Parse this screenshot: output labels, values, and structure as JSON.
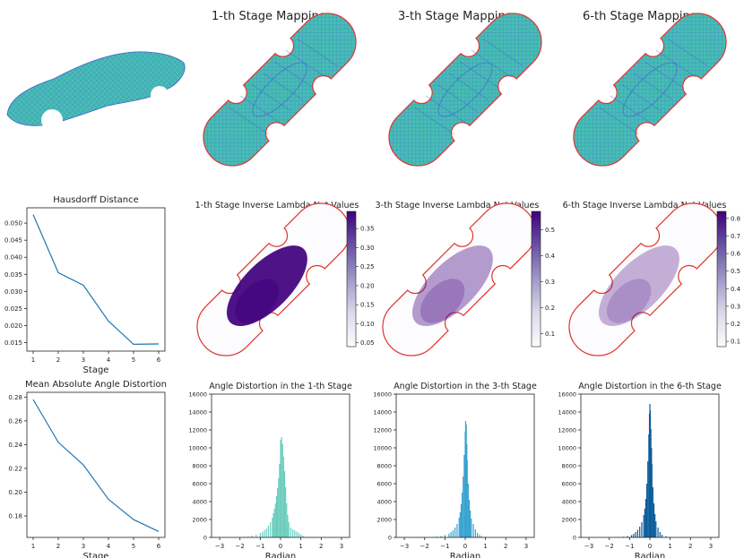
{
  "figure": {
    "row1_titles": [
      "1-th Stage Mapping",
      "3-th Stage Mapping",
      "6-th Stage Mapping"
    ],
    "colors": {
      "boundary": "#e0352f",
      "mesh_fill": "#3fb8a8",
      "mesh_edge": "#3f5fd0",
      "line": "#1f77b4",
      "hist1": "#6ccdbd",
      "hist3": "#3aa3cf",
      "hist6": "#0c5d9b",
      "purple_dark": "#3f007d",
      "purple_light": "#fcfbfd"
    }
  },
  "chart_data": [
    {
      "type": "line",
      "id": "hausdorff",
      "title": "Hausdorff Distance",
      "xlabel": "Stage",
      "ylabel": "",
      "x": [
        1,
        2,
        3,
        4,
        5,
        6
      ],
      "y": [
        0.0525,
        0.0355,
        0.0318,
        0.0213,
        0.0145,
        0.0146
      ],
      "xlim": [
        0.75,
        6.25
      ],
      "ylim": [
        0.0125,
        0.0545
      ],
      "xticks": [
        1,
        2,
        3,
        4,
        5,
        6
      ],
      "yticks": [
        0.015,
        0.02,
        0.025,
        0.03,
        0.035,
        0.04,
        0.045,
        0.05
      ],
      "ytick_labels": [
        "0.015",
        "0.020",
        "0.025",
        "0.030",
        "0.035",
        "0.040",
        "0.045",
        "0.050"
      ]
    },
    {
      "type": "line",
      "id": "angle-mean",
      "title": "Mean Absolute Angle Distortion",
      "xlabel": "Stage",
      "ylabel": "",
      "x": [
        1,
        2,
        3,
        4,
        5,
        6
      ],
      "y": [
        0.278,
        0.242,
        0.223,
        0.194,
        0.177,
        0.167
      ],
      "xlim": [
        0.75,
        6.25
      ],
      "ylim": [
        0.162,
        0.284
      ],
      "xticks": [
        1,
        2,
        3,
        4,
        5,
        6
      ],
      "yticks": [
        0.18,
        0.2,
        0.22,
        0.24,
        0.26,
        0.28
      ],
      "ytick_labels": [
        "0.18",
        "0.20",
        "0.22",
        "0.24",
        "0.26",
        "0.28"
      ]
    },
    {
      "type": "heatmap",
      "id": "lambda-1",
      "title": "1-th Stage Inverse Lambda Net Values",
      "colorbar_ticks": [
        0.05,
        0.1,
        0.15,
        0.2,
        0.25,
        0.3,
        0.35
      ],
      "colorbar_labels": [
        "0.05",
        "0.10",
        "0.15",
        "0.20",
        "0.25",
        "0.30",
        "0.35"
      ],
      "colorbar_range": [
        0.04,
        0.395
      ],
      "center_intensity": 0.92
    },
    {
      "type": "heatmap",
      "id": "lambda-3",
      "title": "3-th Stage Inverse Lambda Net Values",
      "colorbar_ticks": [
        0.1,
        0.2,
        0.3,
        0.4,
        0.5
      ],
      "colorbar_labels": [
        "0.1",
        "0.2",
        "0.3",
        "0.4",
        "0.5"
      ],
      "colorbar_range": [
        0.05,
        0.57
      ],
      "center_intensity": 0.38
    },
    {
      "type": "heatmap",
      "id": "lambda-6",
      "title": "6-th Stage Inverse Lambda Net Values",
      "colorbar_ticks": [
        0.1,
        0.2,
        0.3,
        0.4,
        0.5,
        0.6,
        0.7,
        0.8
      ],
      "colorbar_labels": [
        "0.1",
        "0.2",
        "0.3",
        "0.4",
        "0.5",
        "0.6",
        "0.7",
        "0.8"
      ],
      "colorbar_range": [
        0.07,
        0.84
      ],
      "center_intensity": 0.3
    },
    {
      "type": "bar",
      "id": "hist-1",
      "title": "Angle Distortion in the 1-th Stage",
      "xlabel": "Radian",
      "ylabel": "",
      "xlim": [
        -3.4,
        3.4
      ],
      "ylim": [
        0,
        16000
      ],
      "xticks": [
        -3,
        -2,
        -1,
        0,
        1,
        2,
        3
      ],
      "yticks": [
        0,
        2000,
        4000,
        6000,
        8000,
        10000,
        12000,
        14000,
        16000
      ],
      "bin_width": 0.05,
      "bins": [
        [
          -2.0,
          20
        ],
        [
          -1.8,
          60
        ],
        [
          -1.6,
          120
        ],
        [
          -1.4,
          200
        ],
        [
          -1.2,
          320
        ],
        [
          -1.0,
          480
        ],
        [
          -0.9,
          600
        ],
        [
          -0.8,
          800
        ],
        [
          -0.7,
          1000
        ],
        [
          -0.6,
          1300
        ],
        [
          -0.5,
          1700
        ],
        [
          -0.4,
          2200
        ],
        [
          -0.35,
          2700
        ],
        [
          -0.3,
          3200
        ],
        [
          -0.25,
          3800
        ],
        [
          -0.2,
          4600
        ],
        [
          -0.15,
          5500
        ],
        [
          -0.1,
          6600
        ],
        [
          -0.05,
          8200
        ],
        [
          0.0,
          10900
        ],
        [
          0.05,
          11200
        ],
        [
          0.1,
          10400
        ],
        [
          0.15,
          9000
        ],
        [
          0.2,
          7400
        ],
        [
          0.25,
          5600
        ],
        [
          0.3,
          3800
        ],
        [
          0.35,
          2500
        ],
        [
          0.4,
          1700
        ],
        [
          0.5,
          1100
        ],
        [
          0.6,
          900
        ],
        [
          0.7,
          800
        ],
        [
          0.8,
          650
        ],
        [
          0.9,
          500
        ],
        [
          1.0,
          350
        ],
        [
          1.1,
          200
        ],
        [
          1.3,
          80
        ],
        [
          1.5,
          30
        ]
      ]
    },
    {
      "type": "bar",
      "id": "hist-3",
      "title": "Angle Distortion in the 3-th Stage",
      "xlabel": "Radian",
      "ylabel": "",
      "xlim": [
        -3.4,
        3.4
      ],
      "ylim": [
        0,
        16000
      ],
      "xticks": [
        -3,
        -2,
        -1,
        0,
        1,
        2,
        3
      ],
      "yticks": [
        0,
        2000,
        4000,
        6000,
        8000,
        10000,
        12000,
        14000,
        16000
      ],
      "bin_width": 0.05,
      "bins": [
        [
          -1.6,
          40
        ],
        [
          -1.4,
          80
        ],
        [
          -1.2,
          150
        ],
        [
          -1.0,
          260
        ],
        [
          -0.8,
          420
        ],
        [
          -0.7,
          600
        ],
        [
          -0.6,
          800
        ],
        [
          -0.5,
          1100
        ],
        [
          -0.4,
          1500
        ],
        [
          -0.3,
          2200
        ],
        [
          -0.25,
          2800
        ],
        [
          -0.2,
          3700
        ],
        [
          -0.15,
          5000
        ],
        [
          -0.1,
          6800
        ],
        [
          -0.05,
          9200
        ],
        [
          0.0,
          11800
        ],
        [
          0.02,
          13000
        ],
        [
          0.05,
          12600
        ],
        [
          0.08,
          10400
        ],
        [
          0.1,
          8600
        ],
        [
          0.15,
          6000
        ],
        [
          0.2,
          4200
        ],
        [
          0.25,
          3000
        ],
        [
          0.3,
          2100
        ],
        [
          0.4,
          1500
        ],
        [
          0.5,
          900
        ],
        [
          0.6,
          500
        ],
        [
          0.7,
          280
        ],
        [
          0.8,
          150
        ],
        [
          1.0,
          60
        ]
      ]
    },
    {
      "type": "bar",
      "id": "hist-6",
      "title": "Angle Distortion in the 6-th Stage",
      "xlabel": "Radian",
      "ylabel": "",
      "xlim": [
        -3.4,
        3.4
      ],
      "ylim": [
        0,
        16000
      ],
      "xticks": [
        -3,
        -2,
        -1,
        0,
        1,
        2,
        3
      ],
      "yticks": [
        0,
        2000,
        4000,
        6000,
        8000,
        10000,
        12000,
        14000,
        16000
      ],
      "bin_width": 0.05,
      "bins": [
        [
          -1.6,
          30
        ],
        [
          -1.3,
          70
        ],
        [
          -1.1,
          140
        ],
        [
          -0.9,
          260
        ],
        [
          -0.8,
          400
        ],
        [
          -0.7,
          600
        ],
        [
          -0.6,
          850
        ],
        [
          -0.5,
          1200
        ],
        [
          -0.4,
          1700
        ],
        [
          -0.3,
          2500
        ],
        [
          -0.25,
          3200
        ],
        [
          -0.2,
          4300
        ],
        [
          -0.15,
          6000
        ],
        [
          -0.1,
          8500
        ],
        [
          -0.05,
          11500
        ],
        [
          -0.02,
          13800
        ],
        [
          0.0,
          14900
        ],
        [
          0.02,
          14200
        ],
        [
          0.05,
          12100
        ],
        [
          0.08,
          10000
        ],
        [
          0.1,
          8200
        ],
        [
          0.15,
          5600
        ],
        [
          0.2,
          3800
        ],
        [
          0.25,
          2600
        ],
        [
          0.3,
          1800
        ],
        [
          0.4,
          1100
        ],
        [
          0.5,
          600
        ],
        [
          0.6,
          300
        ],
        [
          0.8,
          120
        ],
        [
          1.0,
          40
        ]
      ]
    }
  ]
}
